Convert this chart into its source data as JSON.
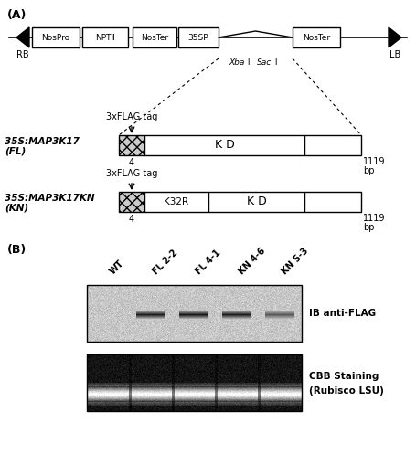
{
  "fig_width": 4.55,
  "fig_height": 5.2,
  "dpi": 100,
  "panel_A_label": "(A)",
  "panel_B_label": "(B)",
  "vector_boxes": [
    "NosPro",
    "NPTⅡ",
    "NosTer",
    "35SP",
    "NosTer"
  ],
  "rb_label": "RB",
  "lb_label": "LB",
  "xba_label": "Xba",
  "xba_i": " I",
  "sac_label": "Sac",
  "sac_i": " I",
  "fl_label_line1": "35S:MAP3K17",
  "fl_label_line2": "(FL)",
  "kn_label_line1": "35S:MAP3K17KN",
  "kn_label_line2": "(KN)",
  "flag_tag_label": "3xFLAG tag",
  "kd_label": "K D",
  "k32r_label": "K32R",
  "pos4_label": "4",
  "pos1119_label": "1119",
  "bp_label": "bp",
  "lane_labels": [
    "WT",
    "FL 2-2",
    "FL 4-1",
    "KN 4-6",
    "KN 5-3"
  ],
  "ib_label": "IB anti-FLAG",
  "cbb_label_line1": "CBB Staining",
  "cbb_label_line2": "(Rubisco LSU)",
  "bg_color": "#ffffff"
}
